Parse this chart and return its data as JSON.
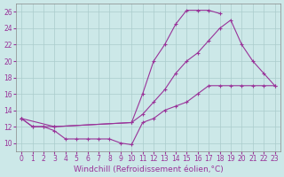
{
  "xlabel": "Windchill (Refroidissement éolien,°C)",
  "bg_color": "#cce8e8",
  "line_color": "#993399",
  "grid_color": "#aacccc",
  "line1_x": [
    0,
    1,
    2,
    3,
    4,
    5,
    6,
    7,
    8,
    9,
    10,
    11,
    12,
    13,
    14,
    15,
    16,
    17,
    18,
    19,
    20,
    21,
    22,
    23
  ],
  "line1_y": [
    13,
    12,
    12,
    11.5,
    10.5,
    10.5,
    10.5,
    10.5,
    10.5,
    10,
    9.8,
    12.5,
    13,
    14,
    14.5,
    15,
    16,
    17,
    17,
    17,
    17,
    17,
    17,
    17
  ],
  "line2_x": [
    0,
    1,
    2,
    3,
    10,
    11,
    12,
    13,
    14,
    15,
    16,
    17,
    18
  ],
  "line2_y": [
    13,
    12,
    12,
    12,
    12.5,
    16,
    20,
    22,
    24.5,
    26.2,
    26.2,
    26.2,
    25.8
  ],
  "line3_x": [
    0,
    3,
    10,
    11,
    12,
    13,
    14,
    15,
    16,
    17,
    18,
    19,
    20,
    21,
    22,
    23
  ],
  "line3_y": [
    13,
    12,
    12.5,
    13.5,
    15,
    16.5,
    18.5,
    20,
    21,
    22.5,
    24,
    25,
    22,
    20,
    18.5,
    17
  ],
  "xlim": [
    -0.5,
    23.5
  ],
  "ylim": [
    9,
    27
  ],
  "xticks": [
    0,
    1,
    2,
    3,
    4,
    5,
    6,
    7,
    8,
    9,
    10,
    11,
    12,
    13,
    14,
    15,
    16,
    17,
    18,
    19,
    20,
    21,
    22,
    23
  ],
  "yticks": [
    10,
    12,
    14,
    16,
    18,
    20,
    22,
    24,
    26
  ],
  "tick_fontsize": 5.5,
  "xlabel_fontsize": 6.5
}
